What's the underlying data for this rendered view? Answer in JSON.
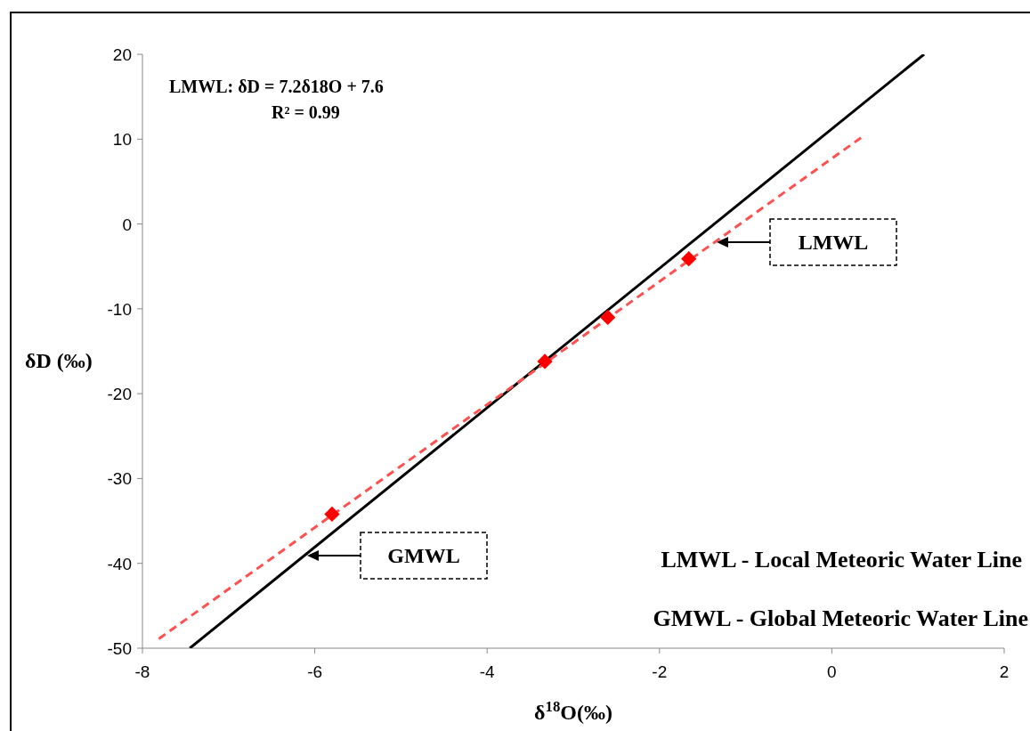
{
  "chart_data": {
    "type": "scatter",
    "xlabel": "δ$^{18}$O(‰)",
    "ylabel": "δD (‰)",
    "xlim": [
      -8,
      2
    ],
    "xticks": [
      -8,
      -6,
      -4,
      -2,
      0,
      2
    ],
    "ylim": [
      -50,
      20
    ],
    "yticks": [
      -50,
      -40,
      -30,
      -20,
      -10,
      0,
      10,
      20
    ],
    "grid": false,
    "series": [
      {
        "type": "line",
        "color": "#000000",
        "line_style": "solid",
        "marker": "none",
        "x": [
          -7.45,
          1.07
        ],
        "values": [
          -50,
          20
        ]
      },
      {
        "type": "line",
        "color": "#ff5050",
        "line_style": "dashed",
        "marker": "none",
        "x": [
          -7.81,
          0.37
        ],
        "values": [
          -48.9,
          10.4
        ]
      },
      {
        "color": "#ff0000",
        "marker": "diamond",
        "x": [
          -5.8,
          -3.33,
          -2.6,
          -1.66
        ],
        "values": [
          -34.2,
          -16.2,
          -11.0,
          -4.1
        ]
      }
    ],
    "annotations": [
      "LMWL: δD = 7.2δ18O + 7.6",
      "R² = 0.99",
      "LMWL",
      "GMWL",
      "LMWL - Local Meteoric Water Line",
      "GMWL - Global Meteoric Water Line"
    ]
  }
}
